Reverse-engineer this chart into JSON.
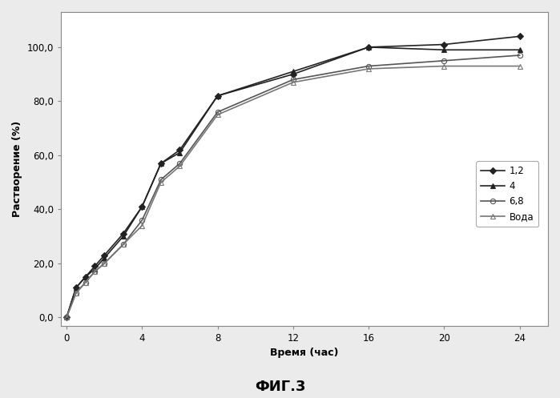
{
  "series_order": [
    "1,2",
    "4",
    "6,8",
    "Вода"
  ],
  "series": {
    "1,2": {
      "x": [
        0,
        0.5,
        1,
        1.5,
        2,
        3,
        4,
        5,
        6,
        8,
        12,
        16,
        20,
        24
      ],
      "y": [
        0,
        11,
        15,
        19,
        23,
        31,
        41,
        57,
        62,
        82,
        90,
        100,
        101,
        104
      ],
      "marker": "D",
      "color": "#222222",
      "markersize": 4.5,
      "linestyle": "-",
      "linewidth": 1.2,
      "fillstyle": "full",
      "markeredgecolor": "#222222"
    },
    "4": {
      "x": [
        0,
        0.5,
        1,
        1.5,
        2,
        3,
        4,
        5,
        6,
        8,
        12,
        16,
        20,
        24
      ],
      "y": [
        0,
        11,
        15,
        18,
        22,
        30,
        41,
        57,
        61,
        82,
        91,
        100,
        99,
        99
      ],
      "marker": "^",
      "color": "#222222",
      "markersize": 4.5,
      "linestyle": "-",
      "linewidth": 1.2,
      "fillstyle": "full",
      "markeredgecolor": "#222222"
    },
    "6,8": {
      "x": [
        0,
        0.5,
        1,
        1.5,
        2,
        3,
        4,
        5,
        6,
        8,
        12,
        16,
        20,
        24
      ],
      "y": [
        0,
        9,
        13,
        17,
        20,
        27,
        36,
        51,
        57,
        76,
        88,
        93,
        95,
        97
      ],
      "marker": "o",
      "color": "#555555",
      "markersize": 4.5,
      "linestyle": "-",
      "linewidth": 1.2,
      "fillstyle": "none",
      "markeredgecolor": "#555555"
    },
    "Вода": {
      "x": [
        0,
        0.5,
        1,
        1.5,
        2,
        3,
        4,
        5,
        6,
        8,
        12,
        16,
        20,
        24
      ],
      "y": [
        0,
        9,
        13,
        17,
        20,
        27,
        34,
        50,
        56,
        75,
        87,
        92,
        93,
        93
      ],
      "marker": "^",
      "color": "#777777",
      "markersize": 4.5,
      "linestyle": "-",
      "linewidth": 1.2,
      "fillstyle": "none",
      "markeredgecolor": "#777777"
    }
  },
  "xlabel": "Время (час)",
  "ylabel": "Растворение (%)",
  "xlim": [
    -0.3,
    25.5
  ],
  "ylim": [
    -3,
    113
  ],
  "xticks": [
    0,
    4,
    8,
    12,
    16,
    20,
    24
  ],
  "yticks": [
    0.0,
    20.0,
    40.0,
    60.0,
    80.0,
    100.0
  ],
  "ytick_labels": [
    "0,0",
    "20,0",
    "40,0",
    "60,0",
    "80,0",
    "100,0"
  ],
  "legend_labels": [
    "1,2",
    "4",
    "6,8",
    "Вода"
  ],
  "figure_label": "ФИГ.3",
  "axis_fontsize": 9,
  "tick_fontsize": 8.5,
  "legend_fontsize": 8.5,
  "figure_label_fontsize": 13,
  "bg_color": "#ebebeb",
  "plot_bg_color": "#ffffff"
}
